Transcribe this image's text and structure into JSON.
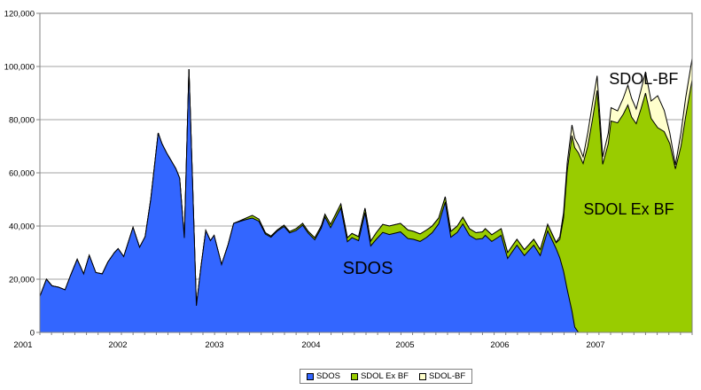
{
  "chart_data": {
    "type": "area",
    "stacked": true,
    "title": "",
    "xlabel": "",
    "ylabel": "",
    "grid": true,
    "legend_position": "bottom",
    "x_range": [
      2001,
      2008
    ],
    "ylim": [
      0,
      120000
    ],
    "y_tick_interval": 20000,
    "y_tick_labels": [
      "0",
      "20,000",
      "40,000",
      "60,000",
      "80,000",
      "100,000",
      "120,000"
    ],
    "x_tick_labels": [
      "2001",
      "2002",
      "2003",
      "2004",
      "2005",
      "2006",
      "2007"
    ],
    "x": [
      2001.0,
      2001.07,
      2001.13,
      2001.2,
      2001.27,
      2001.33,
      2001.4,
      2001.47,
      2001.53,
      2001.6,
      2001.67,
      2001.73,
      2001.8,
      2001.84,
      2001.9,
      2002.0,
      2002.07,
      2002.13,
      2002.19,
      2002.27,
      2002.31,
      2002.36,
      2002.41,
      2002.46,
      2002.5,
      2002.55,
      2002.6,
      2002.64,
      2002.68,
      2002.73,
      2002.78,
      2002.83,
      2002.87,
      2002.95,
      2003.02,
      2003.08,
      2003.15,
      2003.22,
      2003.28,
      2003.35,
      2003.42,
      2003.48,
      2003.55,
      2003.62,
      2003.68,
      2003.75,
      2003.82,
      2003.88,
      2003.95,
      2004.02,
      2004.06,
      2004.12,
      2004.23,
      2004.3,
      2004.35,
      2004.42,
      2004.49,
      2004.55,
      2004.61,
      2004.68,
      2004.75,
      2004.81,
      2004.87,
      2004.95,
      2005.01,
      2005.08,
      2005.15,
      2005.21,
      2005.28,
      2005.35,
      2005.41,
      2005.48,
      2005.54,
      2005.61,
      2005.68,
      2005.75,
      2005.78,
      2005.85,
      2005.95,
      2006.02,
      2006.12,
      2006.2,
      2006.3,
      2006.37,
      2006.45,
      2006.54,
      2006.58,
      2006.62,
      2006.66,
      2006.71,
      2006.74,
      2006.78,
      2006.83,
      2006.88,
      2006.93,
      2006.98,
      2007.04,
      2007.1,
      2007.13,
      2007.2,
      2007.26,
      2007.31,
      2007.35,
      2007.4,
      2007.45,
      2007.5,
      2007.56,
      2007.63,
      2007.7,
      2007.76,
      2007.82,
      2007.88,
      2007.93,
      2008.0
    ],
    "series": [
      {
        "name": "SDOS",
        "color": "#3366FF",
        "values": [
          13500,
          20000,
          17500,
          17000,
          16000,
          21500,
          27500,
          22000,
          29000,
          22500,
          22000,
          26500,
          30000,
          31500,
          28500,
          39500,
          32000,
          36000,
          50000,
          75000,
          71000,
          67500,
          64500,
          61500,
          58000,
          35500,
          99000,
          55000,
          10000,
          25000,
          38300,
          34500,
          36500,
          25500,
          33000,
          41000,
          41800,
          42500,
          43000,
          41800,
          37000,
          35800,
          38200,
          39800,
          37400,
          38300,
          40300,
          37300,
          34800,
          39200,
          43400,
          39400,
          46800,
          34100,
          35600,
          34500,
          45000,
          32500,
          35000,
          37600,
          36800,
          37300,
          37800,
          35300,
          35000,
          34200,
          35700,
          37500,
          40800,
          49000,
          35800,
          37600,
          40800,
          36500,
          35000,
          35300,
          36500,
          34200,
          36500,
          27800,
          32800,
          28900,
          32800,
          28900,
          38200,
          31500,
          28000,
          23000,
          16000,
          8000,
          2000,
          0,
          0,
          0,
          0,
          0,
          0,
          0,
          0,
          0,
          0,
          0,
          0,
          0,
          0,
          0,
          0,
          0,
          0,
          0,
          0,
          0,
          0,
          0
        ]
      },
      {
        "name": "SDOL Ex BF",
        "color": "#99CC00",
        "values": [
          0,
          0,
          0,
          0,
          0,
          0,
          0,
          0,
          0,
          0,
          0,
          0,
          0,
          0,
          0,
          0,
          0,
          0,
          0,
          0,
          0,
          0,
          0,
          0,
          0,
          0,
          0,
          0,
          0,
          0,
          0,
          0,
          0,
          0,
          0,
          0,
          200,
          600,
          1000,
          800,
          500,
          400,
          400,
          500,
          500,
          700,
          700,
          700,
          800,
          800,
          1000,
          1200,
          1500,
          1500,
          1600,
          1500,
          1700,
          1800,
          2500,
          3000,
          3200,
          3200,
          3200,
          3200,
          3000,
          2800,
          2800,
          2500,
          2200,
          2000,
          2200,
          2400,
          2500,
          2500,
          2500,
          2500,
          2500,
          2500,
          2500,
          2200,
          2200,
          2200,
          2200,
          2200,
          2400,
          2200,
          7000,
          20000,
          45000,
          66000,
          67500,
          67500,
          63500,
          70000,
          80000,
          91000,
          63200,
          71000,
          79500,
          78800,
          82000,
          85500,
          81000,
          78500,
          84000,
          90000,
          80500,
          77000,
          75500,
          71000,
          61500,
          70000,
          81000,
          95000
        ]
      },
      {
        "name": "SDOL-BF",
        "color": "#FFFFCC",
        "values": [
          0,
          0,
          0,
          0,
          0,
          0,
          0,
          0,
          0,
          0,
          0,
          0,
          0,
          0,
          0,
          0,
          0,
          0,
          0,
          0,
          0,
          0,
          0,
          0,
          0,
          0,
          0,
          0,
          0,
          0,
          0,
          0,
          0,
          0,
          0,
          0,
          0,
          0,
          0,
          0,
          0,
          0,
          0,
          0,
          0,
          0,
          0,
          0,
          0,
          0,
          0,
          0,
          0,
          0,
          0,
          0,
          0,
          0,
          0,
          0,
          0,
          0,
          0,
          0,
          0,
          0,
          0,
          0,
          0,
          0,
          0,
          0,
          0,
          0,
          0,
          0,
          0,
          0,
          0,
          0,
          0,
          0,
          0,
          0,
          0,
          200,
          1000,
          2000,
          3000,
          4000,
          3500,
          3000,
          2500,
          5000,
          6000,
          5500,
          2800,
          4000,
          5000,
          4500,
          6000,
          7500,
          7000,
          5500,
          7000,
          8000,
          6500,
          12000,
          8000,
          4000,
          1500,
          5000,
          7000,
          8000
        ]
      }
    ],
    "area_annotations": [
      {
        "text": "SDOS",
        "x": 2004.52,
        "y": 24000
      },
      {
        "text": "SDOL Ex BF",
        "x": 2007.32,
        "y": 46500
      },
      {
        "text": "SDOL-BF",
        "x": 2007.48,
        "y": 95500
      }
    ]
  }
}
